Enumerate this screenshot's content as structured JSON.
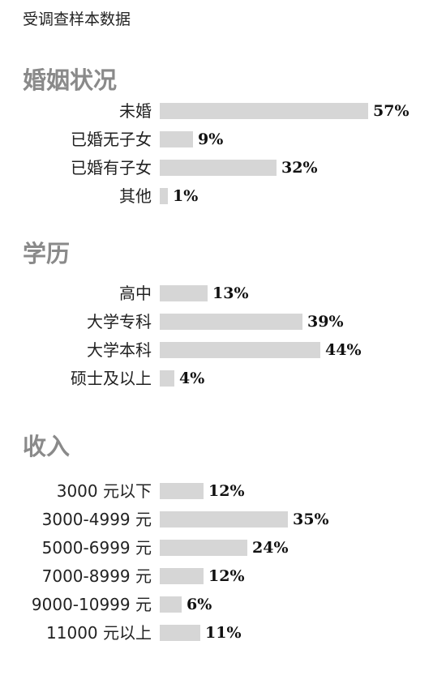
{
  "header": {
    "title": "受调查样本数据"
  },
  "chart_data": [
    {
      "type": "bar",
      "orientation": "horizontal",
      "title": "婚姻状况",
      "categories": [
        "未婚",
        "已婚无子女",
        "已婚有子女",
        "其他"
      ],
      "values": [
        57,
        9,
        32,
        1
      ],
      "labels": [
        "57%",
        "9%",
        "32%",
        "1%"
      ],
      "unit": "%",
      "xlim": [
        0,
        60
      ],
      "grid": false,
      "bar_color": "#d6d6d6"
    },
    {
      "type": "bar",
      "orientation": "horizontal",
      "title": "学历",
      "categories": [
        "高中",
        "大学专科",
        "大学本科",
        "硕士及以上"
      ],
      "values": [
        13,
        39,
        44,
        4
      ],
      "labels": [
        "13%",
        "39%",
        "44%",
        "4%"
      ],
      "unit": "%",
      "xlim": [
        0,
        60
      ],
      "grid": false,
      "bar_color": "#d6d6d6"
    },
    {
      "type": "bar",
      "orientation": "horizontal",
      "title": "收入",
      "categories": [
        "3000 元以下",
        "3000-4999 元",
        "5000-6999 元",
        "7000-8999 元",
        "9000-10999 元",
        "11000 元以上"
      ],
      "values": [
        12,
        35,
        24,
        12,
        6,
        11
      ],
      "labels": [
        "12%",
        "35%",
        "24%",
        "12%",
        "6%",
        "11%"
      ],
      "unit": "%",
      "xlim": [
        0,
        60
      ],
      "grid": false,
      "bar_color": "#d6d6d6"
    }
  ]
}
